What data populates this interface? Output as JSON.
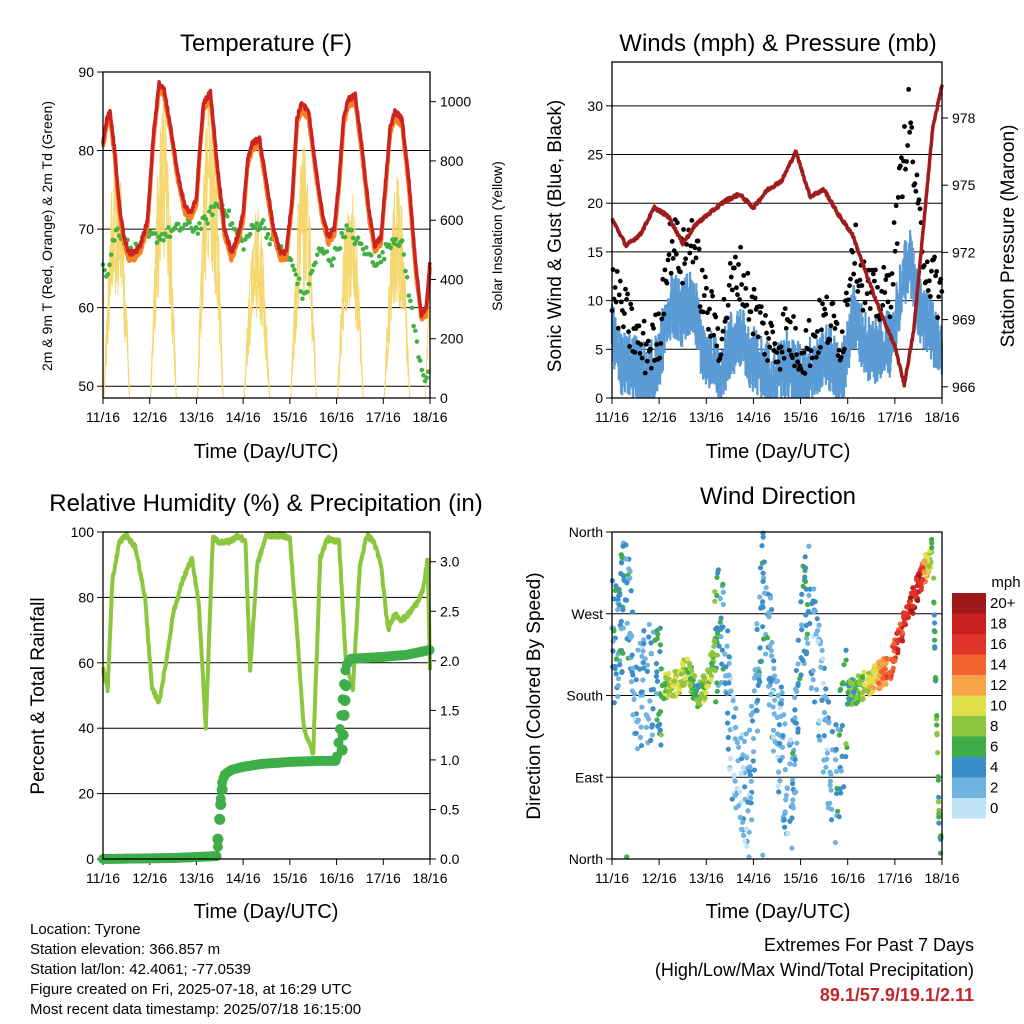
{
  "info": {
    "location": "Location: Tyrone",
    "elevation": "Station elevation: 366.857 m",
    "latlon": "Station lat/lon: 42.4061; -77.0539",
    "created": "Figure created on Fri, 2025-07-18, at 16:29 UTC",
    "recent": "Most recent data timestamp: 2025/07/18 16:15:00"
  },
  "extremes": {
    "title": "Extremes For Past 7 Days",
    "subtitle": "(High/Low/Max Wind/Total Precipitation)",
    "values": "89.1/57.9/19.1/2.11"
  },
  "colors": {
    "temp2m": "#cc2222",
    "temp9m": "#f5821f",
    "dewpoint": "#44b044",
    "solar": "#f5d76e",
    "wind": "#5b9bd5",
    "gust": "#000000",
    "pressure": "#a01c1c",
    "rh": "#8cc63f",
    "precip": "#3fae49"
  },
  "chart_data": [
    {
      "type": "line",
      "title": "Temperature (F)",
      "xlabel": "Time (Day/UTC)",
      "ylabel": "2m & 9m T (Red, Orange) & 2m Td (Green)",
      "ylabel_right": "Solar Insolation (Yellow)",
      "x_ticks": [
        "11/16",
        "12/16",
        "13/16",
        "14/16",
        "15/16",
        "16/16",
        "17/16",
        "18/16"
      ],
      "ylim": [
        48.5,
        90
      ],
      "y_ticks": [
        50,
        60,
        70,
        80,
        90
      ],
      "y2lim": [
        0,
        1100
      ],
      "y2_ticks": [
        0,
        200,
        400,
        600,
        800,
        1000
      ],
      "grid": true,
      "series": [
        {
          "name": "2m T",
          "x": [
            0,
            0.08,
            0.15,
            0.25,
            0.35,
            0.45,
            0.55,
            0.68,
            0.8,
            0.95,
            1.08,
            1.2,
            1.3,
            1.45,
            1.6,
            1.75,
            1.88,
            2.0,
            2.08,
            2.15,
            2.3,
            2.45,
            2.6,
            2.75,
            2.88,
            3.0,
            3.1,
            3.2,
            3.35,
            3.5,
            3.65,
            3.8,
            3.92,
            4.05,
            4.15,
            4.25,
            4.4,
            4.55,
            4.7,
            4.82,
            4.95,
            5.05,
            5.15,
            5.25,
            5.4,
            5.55,
            5.7,
            5.82,
            5.95,
            6.05,
            6.15,
            6.25,
            6.4,
            6.55,
            6.7,
            6.82,
            6.92,
            7.0
          ],
          "y": [
            81,
            84,
            85,
            80,
            73,
            69,
            67,
            67,
            68,
            71,
            82,
            88.5,
            88,
            83,
            77,
            73,
            72,
            74,
            81,
            86,
            87.5,
            78,
            70,
            67,
            69,
            72,
            79,
            81,
            81.5,
            76,
            70,
            67,
            67,
            74,
            84,
            86,
            85,
            78,
            72,
            69,
            70,
            76,
            84,
            86.5,
            87,
            80,
            72,
            68,
            69,
            76,
            83,
            85,
            84,
            76,
            65,
            59,
            60,
            66
          ]
        },
        {
          "name": "Td",
          "x": [
            0,
            0.1,
            0.2,
            0.3,
            0.45,
            0.6,
            0.8,
            1.0,
            1.2,
            1.4,
            1.6,
            1.8,
            2.0,
            2.2,
            2.4,
            2.6,
            2.8,
            3.0,
            3.2,
            3.4,
            3.55,
            3.7,
            3.85,
            4.0,
            4.15,
            4.3,
            4.45,
            4.6,
            4.75,
            4.9,
            5.05,
            5.2,
            5.35,
            5.5,
            5.65,
            5.8,
            5.95,
            6.1,
            6.25,
            6.4,
            6.55,
            6.7,
            6.8,
            6.9,
            7.0
          ],
          "y": [
            66,
            64,
            68,
            70,
            69,
            67,
            68,
            69,
            69,
            69.5,
            70,
            70.5,
            70,
            71,
            73,
            73,
            70,
            68,
            70,
            71,
            69,
            68,
            67,
            66,
            64,
            61,
            64,
            67,
            67,
            66,
            68,
            70,
            69,
            68,
            67,
            66,
            66,
            68,
            69,
            68,
            62,
            56,
            53,
            51,
            52
          ]
        },
        {
          "name": "Solar",
          "y_axis": "right",
          "daily_peak": [
            860,
            1000,
            1070,
            660,
            860,
            750,
            780,
            370
          ]
        }
      ]
    },
    {
      "type": "line",
      "title": "Winds (mph) & Pressure (mb)",
      "xlabel": "Time (Day/UTC)",
      "ylabel": "Sonic Wind & Gust (Blue, Black)",
      "ylabel_right": "Station Pressure (Maroon)",
      "x_ticks": [
        "11/16",
        "12/16",
        "13/16",
        "14/16",
        "15/16",
        "16/16",
        "17/16",
        "18/16"
      ],
      "ylim": [
        0,
        34.5
      ],
      "y_ticks": [
        0,
        5,
        10,
        15,
        20,
        25,
        30
      ],
      "y2lim": [
        965.5,
        980.5
      ],
      "y2_ticks": [
        966,
        969,
        972,
        975,
        978
      ],
      "grid": true,
      "series": [
        {
          "name": "Wind",
          "x": [
            0,
            0.2,
            0.4,
            0.6,
            0.8,
            1.0,
            1.15,
            1.3,
            1.5,
            1.7,
            1.9,
            2.1,
            2.3,
            2.5,
            2.7,
            2.9,
            3.1,
            3.3,
            3.5,
            3.7,
            3.9,
            4.1,
            4.3,
            4.5,
            4.7,
            4.9,
            5.1,
            5.3,
            5.5,
            5.7,
            5.9,
            6.1,
            6.3,
            6.5,
            6.7,
            6.9,
            7.0
          ],
          "y": [
            6,
            3,
            3,
            2,
            2,
            3,
            8,
            9,
            8,
            10,
            5,
            3,
            2,
            5,
            6,
            4,
            3,
            2,
            2,
            3,
            2,
            2,
            3,
            4,
            3,
            2,
            8,
            6,
            4,
            5,
            5,
            10,
            14,
            9,
            7,
            5,
            5
          ]
        },
        {
          "name": "Gust",
          "x": [
            0,
            0.2,
            0.4,
            0.6,
            0.8,
            1.0,
            1.15,
            1.3,
            1.5,
            1.7,
            1.9,
            2.1,
            2.3,
            2.5,
            2.7,
            2.9,
            3.1,
            3.3,
            3.5,
            3.7,
            3.9,
            4.1,
            4.3,
            4.5,
            4.7,
            4.9,
            5.1,
            5.3,
            5.5,
            5.7,
            5.9,
            6.1,
            6.3,
            6.5,
            6.7,
            6.9,
            7.0
          ],
          "y": [
            10,
            8,
            6,
            4,
            4,
            5,
            13,
            15,
            13,
            16,
            10,
            7,
            5,
            10,
            12,
            9,
            7,
            5,
            4,
            6,
            4,
            4,
            5,
            7,
            6,
            5,
            15,
            11,
            9,
            9,
            10,
            20,
            28,
            17,
            12,
            10,
            9
          ]
        },
        {
          "name": "Pressure",
          "y_axis": "right",
          "x": [
            0,
            0.3,
            0.6,
            0.9,
            1.2,
            1.5,
            1.8,
            2.1,
            2.4,
            2.7,
            3.0,
            3.3,
            3.6,
            3.9,
            4.2,
            4.5,
            4.8,
            5.1,
            5.4,
            5.7,
            6.0,
            6.2,
            6.4,
            6.6,
            6.8,
            7.0
          ],
          "y": [
            973.5,
            972.3,
            972.8,
            974.0,
            973.6,
            972.4,
            973.3,
            973.8,
            974.3,
            974.6,
            974.0,
            974.8,
            975.2,
            976.5,
            974.5,
            974.8,
            973.7,
            972.8,
            971.0,
            969.3,
            967.8,
            966.1,
            968.5,
            973.0,
            977.5,
            979.5
          ]
        }
      ]
    },
    {
      "type": "line",
      "title": "Relative Humidity (%) & Precipitation (in)",
      "xlabel": "Time (Day/UTC)",
      "ylabel": "Percent & Total Rainfall",
      "x_ticks": [
        "11/16",
        "12/16",
        "13/16",
        "14/16",
        "15/16",
        "16/16",
        "17/16",
        "18/16"
      ],
      "ylim": [
        0,
        100
      ],
      "y_ticks": [
        0,
        20,
        40,
        60,
        80,
        100
      ],
      "y2lim": [
        0,
        3.3
      ],
      "y2_ticks": [
        0.0,
        0.5,
        1.0,
        1.5,
        2.0,
        2.5,
        3.0
      ],
      "grid": true,
      "series": [
        {
          "name": "RH",
          "x": [
            0,
            0.1,
            0.2,
            0.35,
            0.5,
            0.7,
            0.9,
            1.05,
            1.2,
            1.35,
            1.5,
            1.7,
            1.9,
            2.05,
            2.2,
            2.35,
            2.5,
            2.7,
            2.9,
            3.05,
            3.15,
            3.3,
            3.5,
            3.7,
            3.85,
            4.0,
            4.15,
            4.3,
            4.5,
            4.65,
            4.8,
            4.95,
            5.05,
            5.2,
            5.35,
            5.5,
            5.65,
            5.8,
            5.95,
            6.1,
            6.25,
            6.4,
            6.55,
            6.7,
            6.85,
            6.95,
            7.0
          ],
          "y": [
            58,
            52,
            85,
            97,
            99,
            95,
            80,
            52,
            48,
            60,
            75,
            85,
            92,
            78,
            40,
            98,
            97,
            97,
            99,
            97,
            58,
            90,
            99,
            99,
            99,
            98,
            70,
            40,
            32,
            92,
            98,
            97,
            98,
            60,
            52,
            90,
            99,
            97,
            90,
            70,
            75,
            73,
            75,
            78,
            82,
            92,
            58
          ]
        },
        {
          "name": "Precip",
          "y_axis": "right",
          "x": [
            0,
            1.5,
            2.45,
            2.5,
            2.55,
            2.6,
            2.75,
            3.0,
            3.4,
            4.0,
            4.6,
            5.0,
            5.1,
            5.15,
            5.2,
            5.3,
            6.0,
            6.5,
            7.0
          ],
          "y": [
            0.0,
            0.01,
            0.03,
            0.5,
            0.77,
            0.85,
            0.9,
            0.93,
            0.96,
            0.98,
            0.99,
            0.99,
            1.45,
            1.72,
            1.95,
            2.02,
            2.04,
            2.06,
            2.11
          ]
        }
      ]
    },
    {
      "type": "scatter",
      "title": "Wind Direction",
      "xlabel": "Time (Day/UTC)",
      "ylabel": "Direction (Colored By Speed)",
      "x_ticks": [
        "11/16",
        "12/16",
        "13/16",
        "14/16",
        "15/16",
        "16/16",
        "17/16",
        "18/16"
      ],
      "y_ticks": [
        "North",
        "East",
        "South",
        "West",
        "North"
      ],
      "ylim": [
        0,
        360
      ],
      "grid": true,
      "legend": {
        "title": "mph",
        "placement": "right",
        "labels": [
          "20+",
          "18",
          "16",
          "14",
          "12",
          "10",
          "8",
          "6",
          "4",
          "2",
          "0"
        ],
        "colors": [
          "#9e1a1a",
          "#c8201f",
          "#e0352b",
          "#f0632f",
          "#f6a348",
          "#e2e04a",
          "#8cc63f",
          "#3fae49",
          "#3b8ec9",
          "#6fb3e0",
          "#bfe3f5"
        ]
      },
      "series": [
        {
          "name": "Direction",
          "x": [
            0.1,
            0.3,
            0.5,
            0.8,
            1.0,
            1.2,
            1.4,
            1.6,
            1.8,
            2.0,
            2.3,
            2.6,
            2.9,
            3.2,
            3.5,
            3.8,
            4.1,
            4.4,
            4.7,
            5.0,
            5.3,
            5.6,
            5.9,
            6.2,
            6.5,
            6.8,
            6.95
          ],
          "y": [
            240,
            300,
            180,
            200,
            190,
            190,
            195,
            210,
            180,
            190,
            260,
            110,
            60,
            300,
            150,
            60,
            300,
            200,
            70,
            180,
            190,
            200,
            210,
            260,
            300,
            340,
            20
          ],
          "speed": [
            4,
            4,
            2,
            3,
            5,
            9,
            10,
            8,
            6,
            9,
            4,
            2,
            2,
            4,
            2,
            3,
            4,
            2,
            3,
            6,
            8,
            12,
            14,
            17,
            18,
            6,
            6
          ]
        }
      ]
    }
  ]
}
